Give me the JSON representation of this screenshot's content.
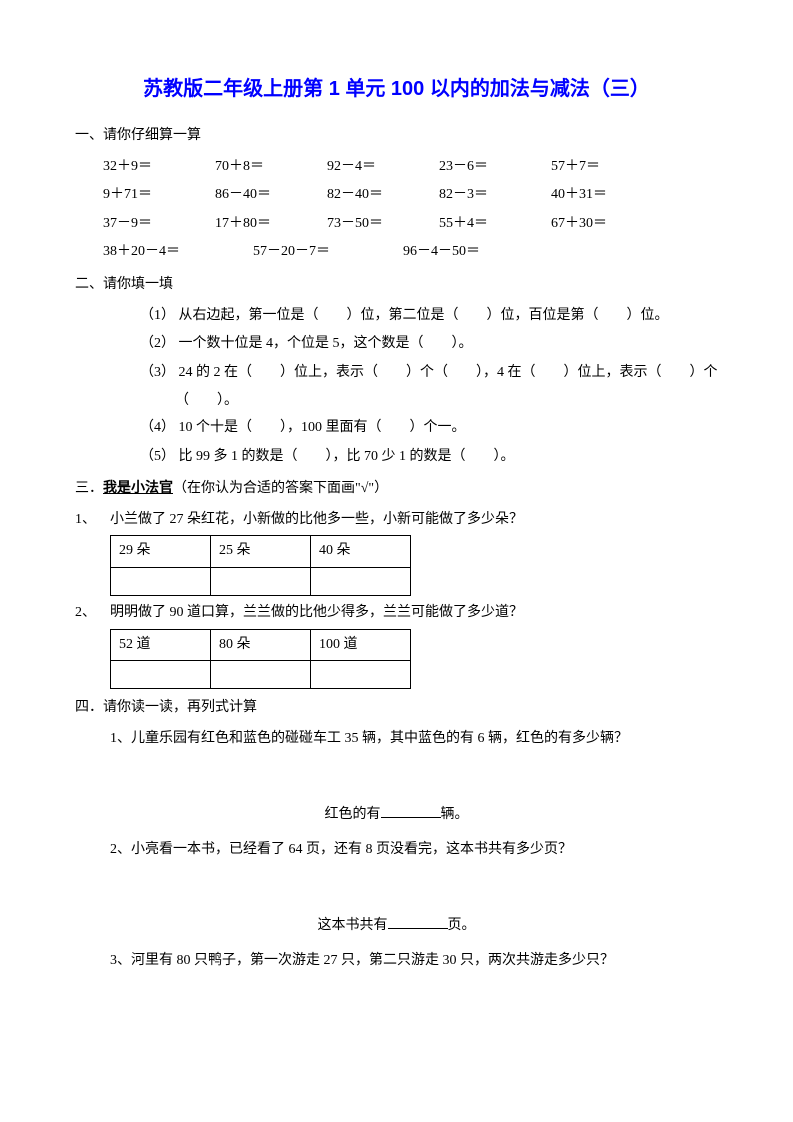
{
  "title": "苏教版二年级上册第 1 单元 100 以内的加法与减法（三）",
  "section1": {
    "header": "一、请你仔细算一算",
    "rows": [
      [
        "32＋9＝",
        "70＋8＝",
        "92－4＝",
        "23－6＝",
        "57＋7＝"
      ],
      [
        "9＋71＝",
        "86－40＝",
        "82－40＝",
        "82－3＝",
        "40＋31＝"
      ],
      [
        "37－9＝",
        "17＋80＝",
        "73－50＝",
        "55＋4＝",
        "67＋30＝"
      ]
    ],
    "row_wide": [
      "38＋20－4＝",
      "57－20－7＝",
      "96－4－50＝"
    ]
  },
  "section2": {
    "header": "二、请你填一填",
    "items": [
      "（1） 从右边起，第一位是（　　）位，第二位是（　　）位，百位是第（　　）位。",
      "（2） 一个数十位是 4，个位是 5，这个数是（　　）。",
      "（3） 24 的 2 在（　　）位上，表示（　　）个（　　），4 在（　　）位上，表示（　　）个",
      "（　　）。",
      "（4） 10 个十是（　　），100 里面有（　　）个一。",
      "（5） 比 99 多 1 的数是（　　），比 70 少 1 的数是（　　）。"
    ]
  },
  "section3": {
    "header_prefix": "三．",
    "header_bold": "我是小法官",
    "header_suffix": "（在你认为合适的答案下面画\"√\"）",
    "q1": {
      "num": "1、",
      "text": "小兰做了 27 朵红花，小新做的比他多一些，小新可能做了多少朵？",
      "options": [
        "29 朵",
        "25 朵",
        "40 朵"
      ]
    },
    "q2": {
      "num": "2、",
      "text": "明明做了 90 道口算，兰兰做的比他少得多，兰兰可能做了多少道？",
      "options": [
        "52 道",
        "80 朵",
        "100 道"
      ]
    }
  },
  "section4": {
    "header": "四．请你读一读，再列式计算",
    "p1": {
      "text": "1、儿童乐园有红色和蓝色的碰碰车工 35 辆，其中蓝色的有 6 辆，红色的有多少辆？",
      "answer_prefix": "红色的有",
      "answer_suffix": "辆。"
    },
    "p2": {
      "text": "2、小亮看一本书，已经看了 64 页，还有 8 页没看完，这本书共有多少页？",
      "answer_prefix": "这本书共有",
      "answer_suffix": "页。"
    },
    "p3": {
      "text": "3、河里有 80 只鸭子，第一次游走 27 只，第二只游走 30 只，两次共游走多少只？"
    }
  }
}
